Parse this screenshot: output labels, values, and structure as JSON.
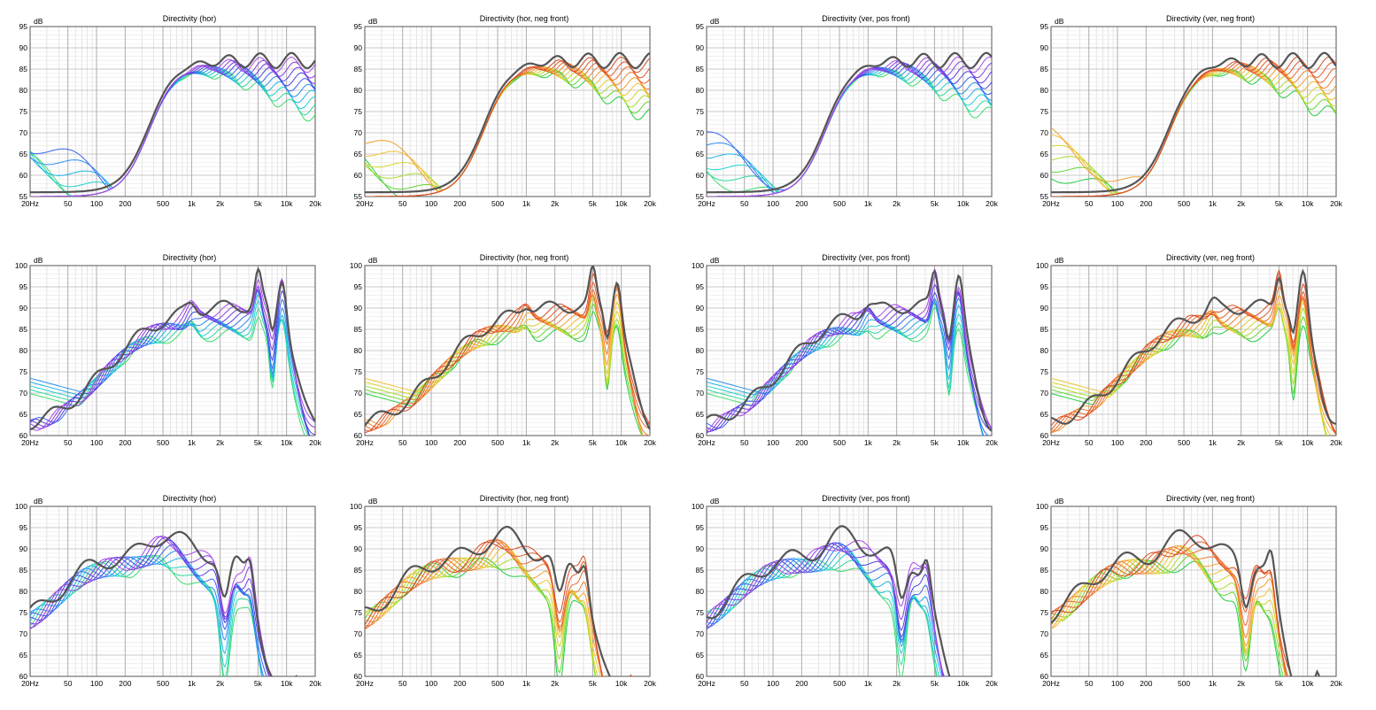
{
  "chart_data": [
    {
      "type": "line",
      "title": "Directivity (hor)",
      "ylabel": "dB",
      "ylim": [
        55,
        95
      ],
      "yticks": [
        55,
        60,
        65,
        70,
        75,
        80,
        85,
        90,
        95
      ],
      "xlim": [
        20,
        20000
      ],
      "xticks": [
        "20Hz",
        "50",
        "100",
        "200",
        "500",
        "1k",
        "2k",
        "5k",
        "10k",
        "20k"
      ],
      "pattern": "woofer",
      "ramp": "cool"
    },
    {
      "type": "line",
      "title": "Directivity (hor, neg front)",
      "ylabel": "dB",
      "ylim": [
        55,
        95
      ],
      "yticks": [
        55,
        60,
        65,
        70,
        75,
        80,
        85,
        90,
        95
      ],
      "xlim": [
        20,
        20000
      ],
      "xticks": [
        "20Hz",
        "50",
        "100",
        "200",
        "500",
        "1k",
        "2k",
        "5k",
        "10k",
        "20k"
      ],
      "pattern": "woofer",
      "ramp": "warm"
    },
    {
      "type": "line",
      "title": "Directivity (ver, pos front)",
      "ylabel": "dB",
      "ylim": [
        55,
        95
      ],
      "yticks": [
        55,
        60,
        65,
        70,
        75,
        80,
        85,
        90,
        95
      ],
      "xlim": [
        20,
        20000
      ],
      "xticks": [
        "20Hz",
        "50",
        "100",
        "200",
        "500",
        "1k",
        "2k",
        "5k",
        "10k",
        "20k"
      ],
      "pattern": "woofer",
      "ramp": "cool"
    },
    {
      "type": "line",
      "title": "Directivity (ver, neg front)",
      "ylabel": "dB",
      "ylim": [
        55,
        95
      ],
      "yticks": [
        55,
        60,
        65,
        70,
        75,
        80,
        85,
        90,
        95
      ],
      "xlim": [
        20,
        20000
      ],
      "xticks": [
        "20Hz",
        "50",
        "100",
        "200",
        "500",
        "1k",
        "2k",
        "5k",
        "10k",
        "20k"
      ],
      "pattern": "woofer",
      "ramp": "warm"
    },
    {
      "type": "line",
      "title": "Directivity (hor)",
      "ylabel": "dB",
      "ylim": [
        60,
        100
      ],
      "yticks": [
        60,
        65,
        70,
        75,
        80,
        85,
        90,
        95,
        100
      ],
      "xlim": [
        20,
        20000
      ],
      "xticks": [
        "20Hz",
        "50",
        "100",
        "200",
        "500",
        "1k",
        "2k",
        "5k",
        "10k",
        "20k"
      ],
      "pattern": "tweeter",
      "ramp": "cool"
    },
    {
      "type": "line",
      "title": "Directivity (hor, neg front)",
      "ylabel": "dB",
      "ylim": [
        60,
        100
      ],
      "yticks": [
        60,
        65,
        70,
        75,
        80,
        85,
        90,
        95,
        100
      ],
      "xlim": [
        20,
        20000
      ],
      "xticks": [
        "20Hz",
        "50",
        "100",
        "200",
        "500",
        "1k",
        "2k",
        "5k",
        "10k",
        "20k"
      ],
      "pattern": "tweeter",
      "ramp": "warm"
    },
    {
      "type": "line",
      "title": "Directivity (ver, pos front)",
      "ylabel": "dB",
      "ylim": [
        60,
        100
      ],
      "yticks": [
        60,
        65,
        70,
        75,
        80,
        85,
        90,
        95,
        100
      ],
      "xlim": [
        20,
        20000
      ],
      "xticks": [
        "20Hz",
        "50",
        "100",
        "200",
        "500",
        "1k",
        "2k",
        "5k",
        "10k",
        "20k"
      ],
      "pattern": "tweeter",
      "ramp": "cool"
    },
    {
      "type": "line",
      "title": "Directivity (ver, neg front)",
      "ylabel": "dB",
      "ylim": [
        60,
        100
      ],
      "yticks": [
        60,
        65,
        70,
        75,
        80,
        85,
        90,
        95,
        100
      ],
      "xlim": [
        20,
        20000
      ],
      "xticks": [
        "20Hz",
        "50",
        "100",
        "200",
        "500",
        "1k",
        "2k",
        "5k",
        "10k",
        "20k"
      ],
      "pattern": "tweeter",
      "ramp": "warm"
    },
    {
      "type": "line",
      "title": "Directivity (hor)",
      "ylabel": "dB",
      "ylim": [
        60,
        100
      ],
      "yticks": [
        60,
        65,
        70,
        75,
        80,
        85,
        90,
        95,
        100
      ],
      "xlim": [
        20,
        20000
      ],
      "xticks": [
        "20Hz",
        "50",
        "100",
        "200",
        "500",
        "1k",
        "2k",
        "5k",
        "10k",
        "20k"
      ],
      "pattern": "fullrange",
      "ramp": "cool"
    },
    {
      "type": "line",
      "title": "Directivity (hor, neg front)",
      "ylabel": "dB",
      "ylim": [
        60,
        100
      ],
      "yticks": [
        60,
        65,
        70,
        75,
        80,
        85,
        90,
        95,
        100
      ],
      "xlim": [
        20,
        20000
      ],
      "xticks": [
        "20Hz",
        "50",
        "100",
        "200",
        "500",
        "1k",
        "2k",
        "5k",
        "10k",
        "20k"
      ],
      "pattern": "fullrange",
      "ramp": "warm"
    },
    {
      "type": "line",
      "title": "Directivity (ver, pos front)",
      "ylabel": "dB",
      "ylim": [
        60,
        100
      ],
      "yticks": [
        60,
        65,
        70,
        75,
        80,
        85,
        90,
        95,
        100
      ],
      "xlim": [
        20,
        20000
      ],
      "xticks": [
        "20Hz",
        "50",
        "100",
        "200",
        "500",
        "1k",
        "2k",
        "5k",
        "10k",
        "20k"
      ],
      "pattern": "fullrange",
      "ramp": "cool"
    },
    {
      "type": "line",
      "title": "Directivity (ver, neg front)",
      "ylabel": "dB",
      "ylim": [
        60,
        100
      ],
      "yticks": [
        60,
        65,
        70,
        75,
        80,
        85,
        90,
        95,
        100
      ],
      "xlim": [
        20,
        20000
      ],
      "xticks": [
        "20Hz",
        "50",
        "100",
        "200",
        "500",
        "1k",
        "2k",
        "5k",
        "10k",
        "20k"
      ],
      "pattern": "fullrange",
      "ramp": "warm"
    }
  ],
  "palettes": {
    "cool": [
      "#3ddc6a",
      "#2ed8a0",
      "#22d0cf",
      "#1fb2e6",
      "#2a8ef0",
      "#3a66ef",
      "#4a46e6",
      "#6a3be0",
      "#8a3fe0",
      "#a84ae6"
    ],
    "warm": [
      "#22cc44",
      "#66d633",
      "#a8dc2a",
      "#d8d42a",
      "#f0c030",
      "#f4a030",
      "#f08030",
      "#ec6a30",
      "#e45a2a",
      "#d84a22"
    ],
    "axis_color": "#555555",
    "ref_color": "#555555"
  }
}
